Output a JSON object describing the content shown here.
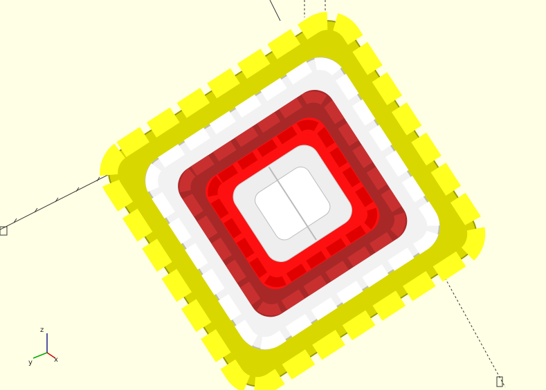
{
  "viewport": {
    "axis_labels": {
      "x": "x",
      "y": "y",
      "z": "z"
    }
  }
}
